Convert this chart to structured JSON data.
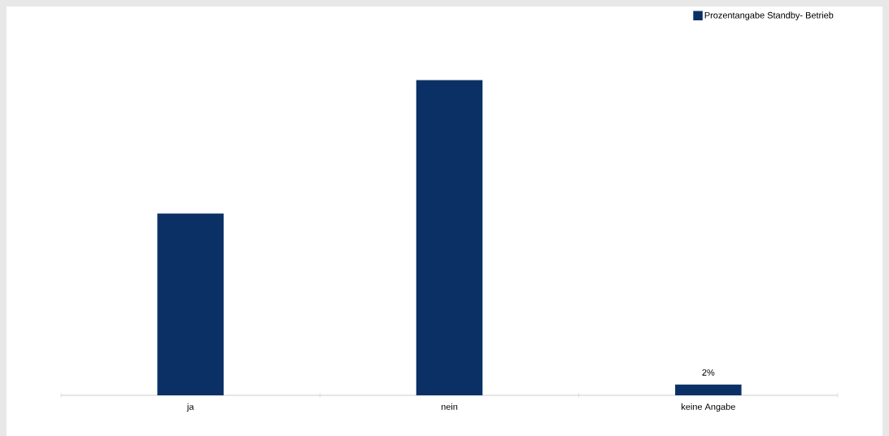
{
  "chart_data": {
    "type": "bar",
    "categories": [
      "ja",
      "nein",
      "keine Angabe"
    ],
    "series": [
      {
        "name": "Prozentangabe Standby- Betrieb",
        "color": "#0b3066",
        "values": [
          35.8,
          62.2,
          2
        ],
        "value_labels": [
          null,
          null,
          "2%"
        ]
      }
    ],
    "legend": "top right"
  }
}
